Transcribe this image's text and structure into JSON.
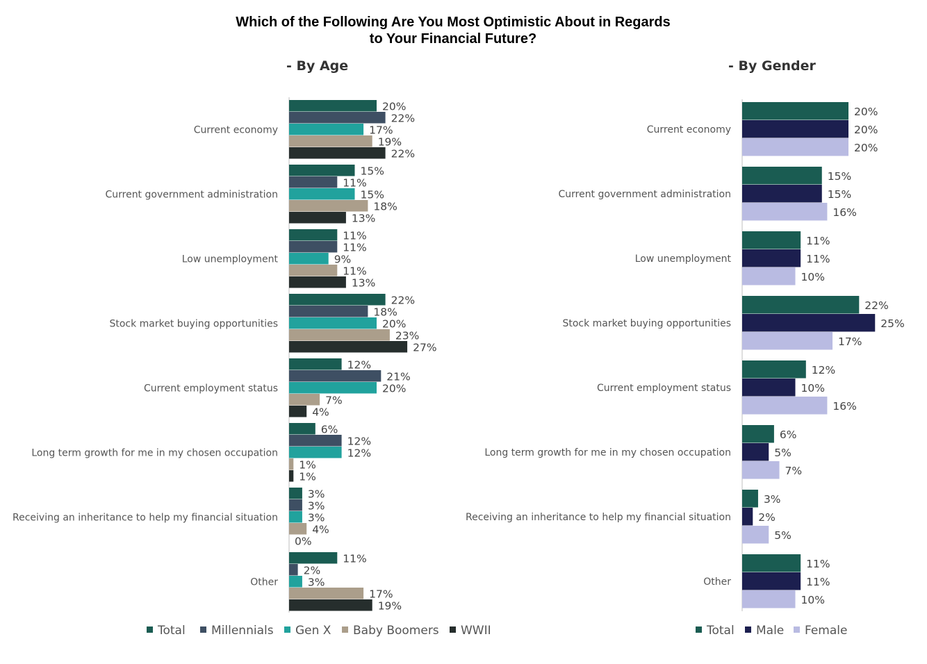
{
  "page": {
    "title_line1": "Which of the Following Are You Most Optimistic About in Regards",
    "title_line2": "to Your Financial Future?"
  },
  "chart_data": [
    {
      "type": "bar",
      "orientation": "horizontal",
      "subtitle": "- By Age",
      "categories": [
        "Current economy",
        "Current government administration",
        "Low unemployment",
        "Stock market buying opportunities",
        "Current employment status",
        "Long term growth for me in my chosen occupation",
        "Receiving an inheritance to help my financial situation",
        "Other"
      ],
      "series": [
        {
          "name": "Total",
          "color": "#1a5c52",
          "values": [
            20,
            15,
            11,
            22,
            12,
            6,
            3,
            11
          ]
        },
        {
          "name": "Millennials",
          "color": "#3e4f63",
          "values": [
            22,
            11,
            11,
            18,
            21,
            12,
            3,
            2
          ]
        },
        {
          "name": "Gen X",
          "color": "#21a29d",
          "values": [
            17,
            15,
            9,
            20,
            20,
            12,
            3,
            3
          ]
        },
        {
          "name": "Baby Boomers",
          "color": "#ab9e8b",
          "values": [
            19,
            18,
            11,
            23,
            7,
            1,
            4,
            17
          ]
        },
        {
          "name": "WWII",
          "color": "#262e2d",
          "values": [
            22,
            13,
            13,
            27,
            4,
            1,
            0,
            19
          ]
        }
      ],
      "value_suffix": "%",
      "legend_position": "bottom"
    },
    {
      "type": "bar",
      "orientation": "horizontal",
      "subtitle": "- By Gender",
      "categories": [
        "Current economy",
        "Current government administration",
        "Low unemployment",
        "Stock market buying opportunities",
        "Current employment status",
        "Long term growth for me in my chosen occupation",
        "Receiving an inheritance to help my financial situation",
        "Other"
      ],
      "series": [
        {
          "name": "Total",
          "color": "#1a5c52",
          "values": [
            20,
            15,
            11,
            22,
            12,
            6,
            3,
            11
          ]
        },
        {
          "name": "Male",
          "color": "#1c1f4f",
          "values": [
            20,
            15,
            11,
            25,
            10,
            5,
            2,
            11
          ]
        },
        {
          "name": "Female",
          "color": "#b9bbe2",
          "values": [
            20,
            16,
            10,
            17,
            16,
            7,
            5,
            10
          ]
        }
      ],
      "value_suffix": "%",
      "legend_position": "bottom"
    }
  ]
}
